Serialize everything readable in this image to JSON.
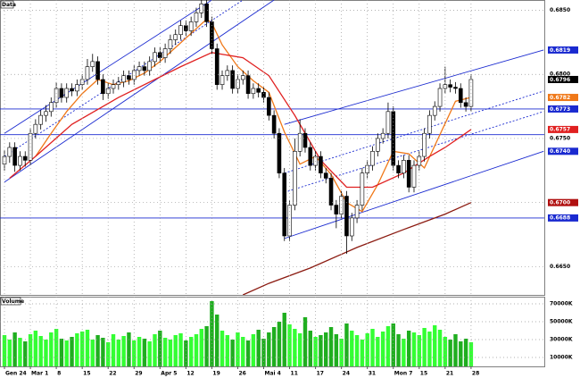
{
  "chart_data": {
    "type": "candlestick",
    "title": "Data",
    "categories": [
      "Gen 24",
      null,
      null,
      null,
      null,
      "Mar 1",
      null,
      null,
      null,
      null,
      "8",
      null,
      null,
      null,
      null,
      "15",
      null,
      null,
      null,
      null,
      "22",
      null,
      null,
      null,
      null,
      "29",
      null,
      null,
      null,
      null,
      "Apr 5",
      null,
      null,
      null,
      null,
      "12",
      null,
      null,
      null,
      null,
      "19",
      null,
      null,
      null,
      null,
      "26",
      null,
      null,
      null,
      null,
      "Mai 4",
      null,
      null,
      null,
      null,
      "11",
      null,
      null,
      null,
      null,
      "17",
      null,
      null,
      null,
      null,
      "24",
      null,
      null,
      null,
      null,
      "31",
      null,
      null,
      null,
      null,
      "Mon 7",
      null,
      null,
      null,
      null,
      "15",
      null,
      null,
      null,
      null,
      "21",
      null,
      null,
      null,
      null,
      "28"
    ],
    "candles": [
      [
        0.673,
        0.6741,
        0.6725,
        0.6736
      ],
      [
        0.6736,
        0.6747,
        0.6731,
        0.6743
      ],
      [
        0.6743,
        0.6747,
        0.6724,
        0.6729
      ],
      [
        0.6729,
        0.674,
        0.6725,
        0.6736
      ],
      [
        0.6736,
        0.674,
        0.6728,
        0.6733
      ],
      [
        0.6733,
        0.6758,
        0.6729,
        0.6754
      ],
      [
        0.6754,
        0.6765,
        0.675,
        0.6761
      ],
      [
        0.6761,
        0.6772,
        0.6757,
        0.6768
      ],
      [
        0.6768,
        0.6776,
        0.6763,
        0.6771
      ],
      [
        0.6771,
        0.6782,
        0.6767,
        0.6778
      ],
      [
        0.6778,
        0.6794,
        0.6774,
        0.6789
      ],
      [
        0.6789,
        0.6793,
        0.6778,
        0.6782
      ],
      [
        0.6782,
        0.6793,
        0.6778,
        0.6789
      ],
      [
        0.6789,
        0.6793,
        0.6783,
        0.6787
      ],
      [
        0.6787,
        0.6796,
        0.6783,
        0.6792
      ],
      [
        0.6792,
        0.68,
        0.6788,
        0.6796
      ],
      [
        0.6796,
        0.6812,
        0.6792,
        0.6806
      ],
      [
        0.6806,
        0.6816,
        0.6802,
        0.681
      ],
      [
        0.681,
        0.6814,
        0.6792,
        0.6796
      ],
      [
        0.6796,
        0.68,
        0.678,
        0.6785
      ],
      [
        0.6785,
        0.6793,
        0.6781,
        0.6789
      ],
      [
        0.6789,
        0.6796,
        0.6785,
        0.6792
      ],
      [
        0.6792,
        0.6798,
        0.6788,
        0.6794
      ],
      [
        0.6794,
        0.6803,
        0.679,
        0.6799
      ],
      [
        0.6799,
        0.6803,
        0.6792,
        0.6796
      ],
      [
        0.6796,
        0.6807,
        0.6792,
        0.6803
      ],
      [
        0.6803,
        0.681,
        0.6799,
        0.6806
      ],
      [
        0.6806,
        0.681,
        0.6799,
        0.6803
      ],
      [
        0.6803,
        0.6814,
        0.6799,
        0.681
      ],
      [
        0.681,
        0.6821,
        0.6806,
        0.6817
      ],
      [
        0.6817,
        0.6821,
        0.6809,
        0.6813
      ],
      [
        0.6813,
        0.6824,
        0.6809,
        0.682
      ],
      [
        0.682,
        0.6831,
        0.6816,
        0.6827
      ],
      [
        0.6827,
        0.6835,
        0.6823,
        0.6831
      ],
      [
        0.6831,
        0.6842,
        0.6827,
        0.6838
      ],
      [
        0.6838,
        0.6842,
        0.683,
        0.6834
      ],
      [
        0.6834,
        0.6845,
        0.683,
        0.6841
      ],
      [
        0.6841,
        0.6852,
        0.6837,
        0.6848
      ],
      [
        0.6848,
        0.6858,
        0.6844,
        0.6855
      ],
      [
        0.6855,
        0.6858,
        0.6837,
        0.6841
      ],
      [
        0.6841,
        0.6845,
        0.6816,
        0.682
      ],
      [
        0.682,
        0.6824,
        0.6788,
        0.6792
      ],
      [
        0.6792,
        0.6803,
        0.6788,
        0.6799
      ],
      [
        0.6799,
        0.6807,
        0.6795,
        0.6803
      ],
      [
        0.6803,
        0.6807,
        0.6785,
        0.6789
      ],
      [
        0.6789,
        0.68,
        0.6785,
        0.6796
      ],
      [
        0.6796,
        0.6803,
        0.6792,
        0.6799
      ],
      [
        0.6799,
        0.6803,
        0.6781,
        0.6785
      ],
      [
        0.6785,
        0.6793,
        0.6781,
        0.6789
      ],
      [
        0.6789,
        0.6793,
        0.6782,
        0.6786
      ],
      [
        0.6786,
        0.679,
        0.6778,
        0.6782
      ],
      [
        0.6782,
        0.6786,
        0.6764,
        0.6768
      ],
      [
        0.6768,
        0.6772,
        0.675,
        0.6754
      ],
      [
        0.6754,
        0.6758,
        0.6719,
        0.6723
      ],
      [
        0.6723,
        0.6727,
        0.667,
        0.6674
      ],
      [
        0.6674,
        0.6702,
        0.667,
        0.6698
      ],
      [
        0.6698,
        0.675,
        0.6694,
        0.674
      ],
      [
        0.674,
        0.6765,
        0.6736,
        0.6754
      ],
      [
        0.6754,
        0.6758,
        0.6739,
        0.6743
      ],
      [
        0.6743,
        0.6747,
        0.6725,
        0.6729
      ],
      [
        0.6729,
        0.674,
        0.6725,
        0.6736
      ],
      [
        0.6736,
        0.674,
        0.6719,
        0.6723
      ],
      [
        0.6723,
        0.6727,
        0.6715,
        0.6719
      ],
      [
        0.6719,
        0.6723,
        0.6694,
        0.6698
      ],
      [
        0.6698,
        0.6702,
        0.668,
        0.6691
      ],
      [
        0.6691,
        0.6709,
        0.6687,
        0.6705
      ],
      [
        0.6705,
        0.6709,
        0.666,
        0.6674
      ],
      [
        0.6674,
        0.6692,
        0.667,
        0.6688
      ],
      [
        0.6688,
        0.6702,
        0.6684,
        0.6698
      ],
      [
        0.6698,
        0.6727,
        0.6694,
        0.6723
      ],
      [
        0.6723,
        0.6733,
        0.6719,
        0.6729
      ],
      [
        0.6729,
        0.6744,
        0.6725,
        0.674
      ],
      [
        0.674,
        0.6754,
        0.6736,
        0.675
      ],
      [
        0.675,
        0.6758,
        0.6746,
        0.6754
      ],
      [
        0.6754,
        0.6778,
        0.675,
        0.6771
      ],
      [
        0.6771,
        0.6775,
        0.6725,
        0.6729
      ],
      [
        0.6729,
        0.6733,
        0.6719,
        0.6723
      ],
      [
        0.6723,
        0.6737,
        0.6719,
        0.6733
      ],
      [
        0.6733,
        0.6737,
        0.6708,
        0.6712
      ],
      [
        0.6712,
        0.6733,
        0.6708,
        0.6729
      ],
      [
        0.6729,
        0.674,
        0.6725,
        0.6736
      ],
      [
        0.6736,
        0.6758,
        0.6732,
        0.6754
      ],
      [
        0.6754,
        0.6772,
        0.675,
        0.6768
      ],
      [
        0.6768,
        0.6779,
        0.6764,
        0.6775
      ],
      [
        0.6775,
        0.6793,
        0.6771,
        0.6789
      ],
      [
        0.6789,
        0.6806,
        0.6785,
        0.6792
      ],
      [
        0.6792,
        0.6796,
        0.6786,
        0.679
      ],
      [
        0.679,
        0.6794,
        0.6785,
        0.6789
      ],
      [
        0.6789,
        0.6793,
        0.6774,
        0.6778
      ],
      [
        0.6778,
        0.6782,
        0.6771,
        0.6775
      ],
      [
        0.6775,
        0.68,
        0.6771,
        0.6796
      ]
    ],
    "up_color": "#ffffff",
    "down_color": "#000000",
    "ylim": [
      0.6628,
      0.6858
    ],
    "yticks": [
      {
        "value": 0.665,
        "label": "0.6650"
      },
      {
        "value": 0.67,
        "label": "0.6700"
      },
      {
        "value": 0.675,
        "label": "0.6750"
      },
      {
        "value": 0.68,
        "label": "0.6800"
      },
      {
        "value": 0.685,
        "label": "0.6850"
      }
    ],
    "grid": true,
    "series": [
      {
        "color": "#f07818",
        "x": [
          6,
          9,
          12,
          15,
          18,
          21,
          24,
          27,
          30,
          33,
          36,
          39,
          40,
          42,
          45,
          48,
          51,
          54,
          57,
          60,
          63,
          66,
          69,
          72,
          75,
          78,
          81,
          84,
          87,
          90
        ],
        "values": [
          0.6736,
          0.6754,
          0.6771,
          0.6785,
          0.6796,
          0.6792,
          0.6795,
          0.6801,
          0.681,
          0.6821,
          0.6832,
          0.6843,
          0.684,
          0.6823,
          0.6806,
          0.6795,
          0.6786,
          0.6755,
          0.673,
          0.6736,
          0.6722,
          0.67,
          0.6693,
          0.6714,
          0.674,
          0.6738,
          0.6727,
          0.6753,
          0.6779,
          0.6782
        ]
      },
      {
        "color": "#e02020",
        "x": [
          1,
          6,
          13,
          22,
          34,
          40,
          46,
          51,
          56,
          61,
          66,
          71,
          77,
          82,
          85,
          90
        ],
        "values": [
          0.6719,
          0.6736,
          0.6761,
          0.6782,
          0.6806,
          0.6817,
          0.6813,
          0.6799,
          0.6768,
          0.6733,
          0.6712,
          0.6712,
          0.6723,
          0.6736,
          0.6743,
          0.6757
        ]
      },
      {
        "color": "#8b1a10",
        "x": [
          46,
          51,
          59,
          68,
          77,
          85,
          90
        ],
        "values": [
          0.6628,
          0.6637,
          0.6649,
          0.6665,
          0.6679,
          0.6691,
          0.67
        ]
      }
    ],
    "trendlines": [
      {
        "x": [
          0,
          40
        ],
        "values": [
          0.6754,
          0.6858
        ],
        "style": "solid",
        "color": "#1a2ad0"
      },
      {
        "x": [
          0,
          46
        ],
        "values": [
          0.6736,
          0.6858
        ],
        "style": "dotted",
        "color": "#1a2ad0"
      },
      {
        "x": [
          0,
          52
        ],
        "values": [
          0.6716,
          0.6858
        ],
        "style": "solid",
        "color": "#1a2ad0"
      },
      {
        "x": [
          54,
          104
        ],
        "values": [
          0.6761,
          0.6819
        ],
        "style": "solid",
        "color": "#1a2ad0"
      },
      {
        "x": [
          54,
          104
        ],
        "values": [
          0.6723,
          0.6787
        ],
        "style": "dotted",
        "color": "#1a2ad0"
      },
      {
        "x": [
          54,
          104
        ],
        "values": [
          0.6708,
          0.6771
        ],
        "style": "dotted",
        "color": "#1a2ad0"
      },
      {
        "x": [
          54,
          104
        ],
        "values": [
          0.6672,
          0.674
        ],
        "style": "solid",
        "color": "#1a2ad0"
      }
    ],
    "hlines": [
      {
        "value": 0.6773,
        "color": "#1a2ad0"
      },
      {
        "value": 0.6753,
        "color": "#1a2ad0"
      },
      {
        "value": 0.6688,
        "color": "#1a2ad0"
      }
    ],
    "price_labels": [
      {
        "value": 0.6819,
        "label": "0.6819",
        "color": "#1a2ad0"
      },
      {
        "value": 0.6796,
        "label": "0.6796",
        "color": "#000000"
      },
      {
        "value": 0.6782,
        "label": "0.6782",
        "color": "#f07818"
      },
      {
        "value": 0.6773,
        "label": "0.6773",
        "color": "#1a2ad0"
      },
      {
        "value": 0.6757,
        "label": "0.6757",
        "color": "#e02020"
      },
      {
        "value": 0.674,
        "label": "0.6740",
        "color": "#1a2ad0"
      },
      {
        "value": 0.67,
        "label": "0.6700",
        "color": "#b01010"
      },
      {
        "value": 0.6688,
        "label": "0.6688",
        "color": "#1a2ad0"
      }
    ],
    "volume": {
      "title": "Volume",
      "values": [
        35000,
        30000,
        38000,
        32000,
        28000,
        36000,
        40000,
        34000,
        30000,
        38000,
        42000,
        31000,
        29000,
        33000,
        37000,
        39000,
        41000,
        30000,
        35000,
        32000,
        27000,
        36000,
        30000,
        34000,
        38000,
        29000,
        33000,
        31000,
        28000,
        36000,
        40000,
        32000,
        30000,
        35000,
        37000,
        29000,
        33000,
        36000,
        42000,
        45000,
        73000,
        58000,
        40000,
        35000,
        30000,
        38000,
        33000,
        29000,
        36000,
        41000,
        31000,
        38000,
        44000,
        50000,
        60000,
        47000,
        42000,
        37000,
        55000,
        40000,
        33000,
        35000,
        38000,
        44000,
        36000,
        31000,
        48000,
        40000,
        35000,
        30000,
        37000,
        42000,
        33000,
        39000,
        45000,
        48000,
        36000,
        31000,
        40000,
        38000,
        35000,
        43000,
        39000,
        46000,
        41000,
        33000,
        30000,
        36000,
        28000,
        31000,
        27000
      ],
      "ylim": [
        0,
        78000
      ],
      "yticks": [
        {
          "value": 10000,
          "label": "10000K"
        },
        {
          "value": 30000,
          "label": "30000K"
        },
        {
          "value": 50000,
          "label": "50000K"
        },
        {
          "value": 70000,
          "label": "70000K"
        }
      ],
      "up_color": "#33ff33",
      "down_color": "#1fae1f"
    }
  }
}
